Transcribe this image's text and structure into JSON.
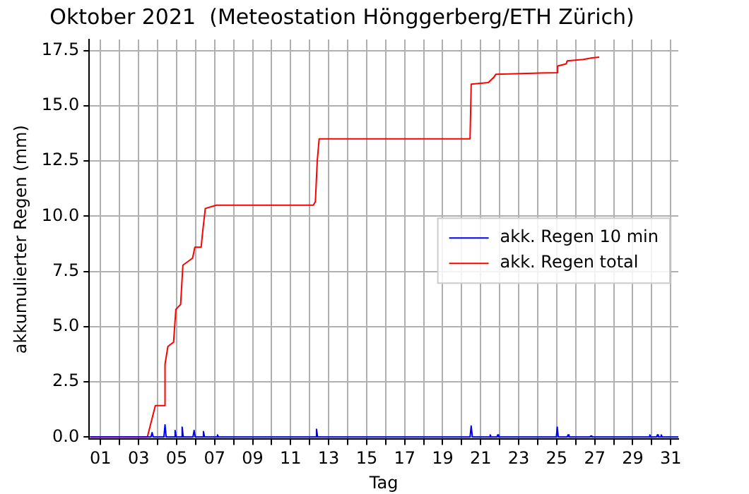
{
  "chart_data": {
    "type": "line",
    "title": "Oktober 2021  (Meteostation Hönggerberg/ETH Zürich)",
    "xlabel": "Tag",
    "ylabel": "akkumulierter Regen (mm)",
    "xlim": [
      0.4,
      31.4
    ],
    "ylim": [
      -0.1,
      18
    ],
    "xticks": [
      {
        "value": 1,
        "label": "01"
      },
      {
        "value": 2,
        "label": null
      },
      {
        "value": 3,
        "label": "03"
      },
      {
        "value": 4,
        "label": null
      },
      {
        "value": 5,
        "label": "05"
      },
      {
        "value": 6,
        "label": null
      },
      {
        "value": 7,
        "label": "07"
      },
      {
        "value": 8,
        "label": null
      },
      {
        "value": 9,
        "label": "09"
      },
      {
        "value": 10,
        "label": null
      },
      {
        "value": 11,
        "label": "11"
      },
      {
        "value": 12,
        "label": null
      },
      {
        "value": 13,
        "label": "13"
      },
      {
        "value": 14,
        "label": null
      },
      {
        "value": 15,
        "label": "15"
      },
      {
        "value": 16,
        "label": null
      },
      {
        "value": 17,
        "label": "17"
      },
      {
        "value": 18,
        "label": null
      },
      {
        "value": 19,
        "label": "19"
      },
      {
        "value": 20,
        "label": null
      },
      {
        "value": 21,
        "label": "21"
      },
      {
        "value": 22,
        "label": null
      },
      {
        "value": 23,
        "label": "23"
      },
      {
        "value": 24,
        "label": null
      },
      {
        "value": 25,
        "label": "25"
      },
      {
        "value": 26,
        "label": null
      },
      {
        "value": 27,
        "label": "27"
      },
      {
        "value": 28,
        "label": null
      },
      {
        "value": 29,
        "label": "29"
      },
      {
        "value": 30,
        "label": null
      },
      {
        "value": 31,
        "label": "31"
      }
    ],
    "yticks": [
      {
        "value": 0,
        "label": "0.0"
      },
      2.5,
      {
        "value": 5,
        "label": "5.0"
      },
      7.5,
      {
        "value": 10,
        "label": "10.0"
      },
      12.5,
      {
        "value": 15,
        "label": "15.0"
      },
      17.5
    ],
    "grid": true,
    "legend": "right",
    "marker": "none",
    "line_style": "solid",
    "series": [
      {
        "name": "akk. Regen 10 min",
        "color": "#0000ff",
        "x": [
          0.45,
          3.65,
          3.71,
          3.77,
          4.33,
          4.39,
          4.45,
          4.86,
          4.92,
          4.98,
          5.23,
          5.29,
          5.35,
          5.86,
          5.92,
          5.98,
          6.35,
          6.41,
          6.47,
          7.1,
          7.15,
          7.2,
          12.3,
          12.36,
          12.42,
          20.44,
          20.5,
          20.56,
          21.45,
          21.5,
          21.55,
          21.85,
          21.9,
          21.95,
          24.98,
          25.03,
          25.08,
          25.55,
          25.6,
          25.65,
          26.75,
          26.8,
          26.85,
          29.85,
          29.9,
          29.95,
          30.25,
          30.3,
          30.35,
          30.45,
          30.5,
          30.55,
          31.4
        ],
        "values": [
          0,
          0,
          0.2,
          0,
          0,
          0.55,
          0,
          0,
          0.3,
          0,
          0,
          0.45,
          0,
          0,
          0.3,
          0,
          0,
          0.25,
          0,
          0,
          0.1,
          0,
          0,
          0.35,
          0,
          0,
          0.5,
          0,
          0,
          0.1,
          0,
          0,
          0.1,
          0,
          0,
          0.45,
          0,
          0,
          0.1,
          0,
          0,
          0.05,
          0,
          0,
          0.1,
          0,
          0,
          0.1,
          0,
          0,
          0.1,
          0,
          0
        ]
      },
      {
        "name": "akk. Regen total",
        "color": "#ff0000",
        "x": [
          0.45,
          3.46,
          3.88,
          4.39,
          4.39,
          4.54,
          4.84,
          4.96,
          5.21,
          5.33,
          5.84,
          5.96,
          6.29,
          6.39,
          6.51,
          7.09,
          12.19,
          12.3,
          12.4,
          12.5,
          20.44,
          20.5,
          21.4,
          21.7,
          21.8,
          25.02,
          25.05,
          25.5,
          25.55,
          26.4,
          26.86,
          27.24
        ],
        "values": [
          0,
          0,
          1.42,
          1.42,
          3.3,
          4.1,
          4.3,
          5.78,
          6.0,
          7.78,
          8.1,
          8.6,
          8.6,
          9.45,
          10.35,
          10.5,
          10.5,
          10.65,
          12.5,
          13.5,
          13.5,
          15.98,
          16.05,
          16.3,
          16.43,
          16.5,
          16.8,
          16.9,
          17.03,
          17.1,
          17.17,
          17.2
        ]
      }
    ]
  }
}
